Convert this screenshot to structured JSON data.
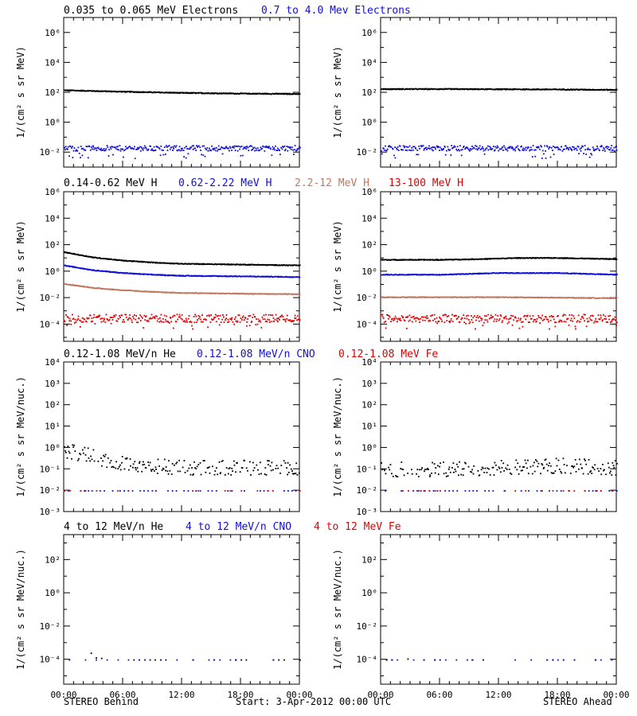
{
  "colors": {
    "black": "#000000",
    "blue": "#1010d8",
    "tan": "#c07860",
    "red": "#e00000"
  },
  "footer": {
    "left": "STEREO Behind",
    "center": "Start:  3-Apr-2012 00:00 UTC",
    "right": "STEREO Ahead"
  },
  "xaxis": {
    "ticks": [
      0,
      6,
      12,
      18,
      24
    ],
    "tick_labels": [
      "00:00",
      "06:00",
      "12:00",
      "18:00",
      "00:00"
    ]
  },
  "rows": [
    {
      "labels": [
        {
          "text": "0.035 to 0.065 MeV Electrons",
          "color": "black"
        },
        {
          "text": "0.7 to 4.0 Mev Electrons",
          "color": "blue"
        }
      ],
      "ylabel": "1/(cm² s sr MeV)",
      "ylim_exp": [
        -3,
        7
      ],
      "ticks": [
        {
          "exp": 6,
          "label": "10⁶"
        },
        {
          "exp": 4,
          "label": "10⁴"
        },
        {
          "exp": 2,
          "label": "10²"
        },
        {
          "exp": 0,
          "label": "10⁰"
        },
        {
          "exp": -2,
          "label": "10⁻²"
        }
      ]
    },
    {
      "labels": [
        {
          "text": "0.14-0.62 MeV H",
          "color": "black"
        },
        {
          "text": "0.62-2.22 MeV H",
          "color": "blue"
        },
        {
          "text": "2.2-12 MeV H",
          "color": "tan"
        },
        {
          "text": "13-100 MeV H",
          "color": "red"
        }
      ],
      "ylabel": "1/(cm² s sr MeV)",
      "ylim_exp": [
        -5.3,
        6
      ],
      "ticks": [
        {
          "exp": 6,
          "label": "10⁶"
        },
        {
          "exp": 4,
          "label": "10⁴"
        },
        {
          "exp": 2,
          "label": "10²"
        },
        {
          "exp": 0,
          "label": "10⁰"
        },
        {
          "exp": -2,
          "label": "10⁻²"
        },
        {
          "exp": -4,
          "label": "10⁻⁴"
        }
      ]
    },
    {
      "labels": [
        {
          "text": "0.12-1.08 MeV/n He",
          "color": "black"
        },
        {
          "text": "0.12-1.08 MeV/n CNO",
          "color": "blue"
        },
        {
          "text": "0.12-1.08 MeV Fe",
          "color": "red"
        }
      ],
      "ylabel": "1/(cm² s sr MeV/nuc.)",
      "ylim_exp": [
        -3,
        4
      ],
      "ticks": [
        {
          "exp": 4,
          "label": "10⁴"
        },
        {
          "exp": 3,
          "label": "10³"
        },
        {
          "exp": 2,
          "label": "10²"
        },
        {
          "exp": 1,
          "label": "10¹"
        },
        {
          "exp": 0,
          "label": "10⁰"
        },
        {
          "exp": -1,
          "label": "10⁻¹"
        },
        {
          "exp": -2,
          "label": "10⁻²"
        },
        {
          "exp": -3,
          "label": "10⁻³"
        }
      ]
    },
    {
      "labels": [
        {
          "text": "4 to 12 MeV/n He",
          "color": "black"
        },
        {
          "text": "4 to 12 MeV/n CNO",
          "color": "blue"
        },
        {
          "text": "4 to 12 MeV Fe",
          "color": "red"
        }
      ],
      "ylabel": "1/(cm² s sr MeV/nuc.)",
      "ylim_exp": [
        -5.5,
        3.5
      ],
      "ticks": [
        {
          "exp": 2,
          "label": "10²"
        },
        {
          "exp": 0,
          "label": "10⁰"
        },
        {
          "exp": -2,
          "label": "10⁻²"
        },
        {
          "exp": -4,
          "label": "10⁻⁴"
        }
      ]
    }
  ],
  "chart_data": [
    {
      "type": "scatter",
      "panel": "row1-behind",
      "yscale": "log",
      "xlim": [
        0,
        24
      ],
      "ylabel": "1/(cm² s sr MeV)",
      "ylim": [
        0.001,
        10000000
      ],
      "series": [
        {
          "name": "0.035 to 0.065 MeV Electrons",
          "color": "black",
          "x": [
            0,
            6,
            12,
            18,
            24
          ],
          "y": [
            150,
            120,
            100,
            90,
            85
          ],
          "style": "dense"
        },
        {
          "name": "0.7 to 4.0 Mev Electrons",
          "color": "blue",
          "x": [
            0,
            6,
            12,
            18,
            24
          ],
          "y": [
            0.02,
            0.02,
            0.02,
            0.02,
            0.02
          ],
          "style": "noisy",
          "spread": 0.18
        }
      ]
    },
    {
      "type": "scatter",
      "panel": "row1-ahead",
      "yscale": "log",
      "xlim": [
        0,
        24
      ],
      "ylabel": "1/(cm² s sr MeV)",
      "ylim": [
        0.001,
        10000000
      ],
      "series": [
        {
          "name": "0.035 to 0.065 MeV Electrons",
          "color": "black",
          "x": [
            0,
            6,
            12,
            18,
            24
          ],
          "y": [
            180,
            180,
            175,
            170,
            160
          ],
          "style": "dense"
        },
        {
          "name": "0.7 to 4.0 Mev Electrons",
          "color": "blue",
          "x": [
            0,
            6,
            12,
            18,
            24
          ],
          "y": [
            0.02,
            0.02,
            0.02,
            0.02,
            0.02
          ],
          "style": "noisy",
          "spread": 0.18
        }
      ]
    },
    {
      "type": "scatter",
      "panel": "row2-behind",
      "yscale": "log",
      "xlim": [
        0,
        24
      ],
      "ylabel": "1/(cm² s sr MeV)",
      "ylim": [
        5e-06,
        1000000
      ],
      "series": [
        {
          "name": "0.14-0.62 MeV H",
          "color": "black",
          "x": [
            0,
            3,
            6,
            9,
            12,
            18,
            24
          ],
          "y": [
            30,
            12,
            7,
            5,
            4,
            3.5,
            3
          ],
          "style": "dense"
        },
        {
          "name": "0.62-2.22 MeV H",
          "color": "blue",
          "x": [
            0,
            3,
            6,
            9,
            12,
            18,
            24
          ],
          "y": [
            3,
            1.3,
            0.8,
            0.6,
            0.5,
            0.45,
            0.4
          ],
          "style": "dense"
        },
        {
          "name": "2.2-12 MeV H",
          "color": "tan",
          "x": [
            0,
            3,
            6,
            9,
            12,
            18,
            24
          ],
          "y": [
            0.12,
            0.06,
            0.04,
            0.03,
            0.025,
            0.022,
            0.02
          ],
          "style": "dense"
        },
        {
          "name": "13-100 MeV H",
          "color": "red",
          "x": [
            0,
            6,
            12,
            18,
            24
          ],
          "y": [
            0.0003,
            0.0003,
            0.0003,
            0.0003,
            0.0003
          ],
          "style": "noisy",
          "spread": 0.3
        }
      ]
    },
    {
      "type": "scatter",
      "panel": "row2-ahead",
      "yscale": "log",
      "xlim": [
        0,
        24
      ],
      "ylabel": "1/(cm² s sr MeV)",
      "ylim": [
        5e-06,
        1000000
      ],
      "series": [
        {
          "name": "0.14-0.62 MeV H",
          "color": "black",
          "x": [
            0,
            6,
            10,
            14,
            18,
            24
          ],
          "y": [
            8,
            8,
            9,
            11,
            11,
            9
          ],
          "style": "dense"
        },
        {
          "name": "0.62-2.22 MeV H",
          "color": "blue",
          "x": [
            0,
            6,
            12,
            18,
            24
          ],
          "y": [
            0.6,
            0.6,
            0.8,
            0.8,
            0.6
          ],
          "style": "dense"
        },
        {
          "name": "2.2-12 MeV H",
          "color": "tan",
          "x": [
            0,
            6,
            12,
            18,
            24
          ],
          "y": [
            0.012,
            0.012,
            0.012,
            0.011,
            0.01
          ],
          "style": "dense"
        },
        {
          "name": "13-100 MeV H",
          "color": "red",
          "x": [
            0,
            6,
            12,
            18,
            24
          ],
          "y": [
            0.0003,
            0.0003,
            0.0003,
            0.0003,
            0.0003
          ],
          "style": "noisy",
          "spread": 0.3
        }
      ]
    },
    {
      "type": "scatter",
      "panel": "row3-behind",
      "yscale": "log",
      "xlim": [
        0,
        24
      ],
      "ylabel": "1/(cm² s sr MeV/nuc.)",
      "ylim": [
        0.0005,
        10000
      ],
      "series": [
        {
          "name": "0.12-1.08 MeV/n He",
          "color": "black",
          "x": [
            0,
            2,
            4,
            6,
            9,
            12,
            18,
            24
          ],
          "y": [
            0.8,
            0.5,
            0.3,
            0.2,
            0.15,
            0.12,
            0.12,
            0.12
          ],
          "style": "sparse",
          "spread": 0.35
        },
        {
          "name": "0.12-1.08 MeV/n CNO",
          "color": "blue",
          "x": [
            0,
            24
          ],
          "y": [
            0.01,
            0.01
          ],
          "style": "floor"
        },
        {
          "name": "0.12-1.08 MeV Fe",
          "color": "red",
          "x": [
            0,
            24
          ],
          "y": [
            0.01,
            0.01
          ],
          "style": "floor-sparse"
        }
      ]
    },
    {
      "type": "scatter",
      "panel": "row3-ahead",
      "yscale": "log",
      "xlim": [
        0,
        24
      ],
      "ylabel": "1/(cm² s sr MeV/nuc.)",
      "ylim": [
        0.0005,
        10000
      ],
      "series": [
        {
          "name": "0.12-1.08 MeV/n He",
          "color": "black",
          "x": [
            0,
            6,
            12,
            18,
            24
          ],
          "y": [
            0.1,
            0.1,
            0.12,
            0.15,
            0.12
          ],
          "style": "sparse",
          "spread": 0.35
        },
        {
          "name": "0.12-1.08 MeV/n CNO",
          "color": "blue",
          "x": [
            0,
            24
          ],
          "y": [
            0.01,
            0.01
          ],
          "style": "floor"
        },
        {
          "name": "0.12-1.08 MeV Fe",
          "color": "red",
          "x": [
            0,
            24
          ],
          "y": [
            0.01,
            0.01
          ],
          "style": "floor-sparse"
        }
      ]
    },
    {
      "type": "scatter",
      "panel": "row4-behind",
      "yscale": "log",
      "xlim": [
        0,
        24
      ],
      "ylabel": "1/(cm² s sr MeV/nuc.)",
      "ylim": [
        3e-07,
        3000
      ],
      "series": [
        {
          "name": "4 to 12 MeV/n He",
          "color": "black",
          "x": [
            0,
            2,
            6,
            24
          ],
          "y": [
            0.00025,
            0.00015,
            0.0001,
            0.0001
          ],
          "style": "floor-sparse"
        },
        {
          "name": "4 to 12 MeV/n CNO",
          "color": "blue",
          "x": [
            0,
            24
          ],
          "y": [
            0.0001,
            0.0001
          ],
          "style": "floor-sparse"
        },
        {
          "name": "4 to 12 MeV Fe",
          "color": "red",
          "x": [
            0,
            24
          ],
          "y": [
            0.0001,
            0.0001
          ],
          "style": "none"
        }
      ]
    },
    {
      "type": "scatter",
      "panel": "row4-ahead",
      "yscale": "log",
      "xlim": [
        0,
        24
      ],
      "ylabel": "1/(cm² s sr MeV/nuc.)",
      "ylim": [
        3e-07,
        3000
      ],
      "series": [
        {
          "name": "4 to 12 MeV/n He",
          "color": "black",
          "x": [
            0,
            24
          ],
          "y": [
            0.0001,
            0.0001
          ],
          "style": "floor-sparse"
        },
        {
          "name": "4 to 12 MeV/n CNO",
          "color": "blue",
          "x": [
            0,
            24
          ],
          "y": [
            0.0001,
            0.0001
          ],
          "style": "floor-sparse"
        },
        {
          "name": "4 to 12 MeV Fe",
          "color": "red",
          "x": [
            0,
            24
          ],
          "y": [
            0.0001,
            0.0001
          ],
          "style": "none"
        }
      ]
    }
  ]
}
